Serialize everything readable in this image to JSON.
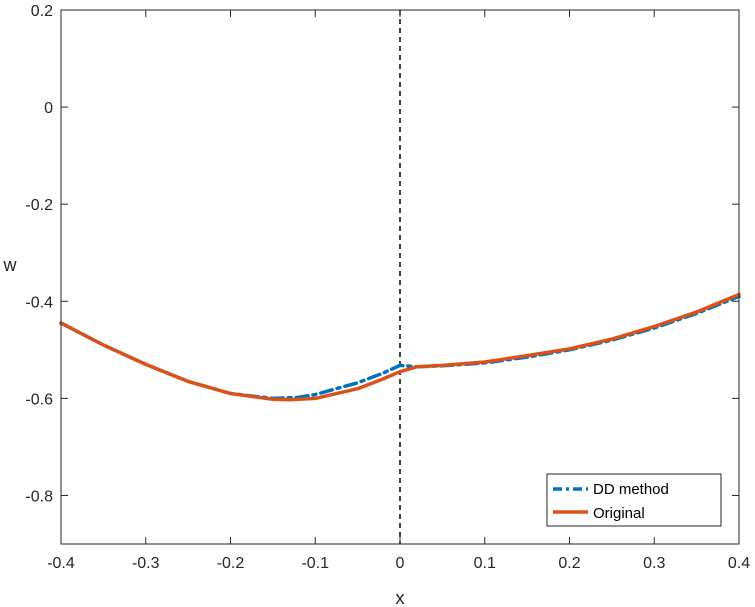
{
  "chart_data": {
    "type": "line",
    "title": "",
    "xlabel": "x",
    "ylabel": "w",
    "xlim": [
      -0.4,
      0.4
    ],
    "ylim": [
      -0.9,
      0.2
    ],
    "xticks": [
      -0.4,
      -0.3,
      -0.2,
      -0.1,
      0,
      0.1,
      0.2,
      0.3,
      0.4
    ],
    "xtick_labels": [
      "-0.4",
      "-0.3",
      "-0.2",
      "-0.1",
      "0",
      "0.1",
      "0.2",
      "0.3",
      "0.4"
    ],
    "yticks": [
      -0.8,
      -0.6,
      -0.4,
      -0.2,
      0,
      0.2
    ],
    "ytick_labels": [
      "-0.8",
      "-0.6",
      "-0.4",
      "-0.2",
      "0",
      "0.2"
    ],
    "grid": false,
    "legend_position": "bottom-right",
    "vertical_line": {
      "x": 0,
      "style": "dashed",
      "color": "#000000"
    },
    "series": [
      {
        "name": "DD method",
        "color": "#0072BD",
        "style": "dashdot",
        "x": [
          -0.4,
          -0.35,
          -0.3,
          -0.25,
          -0.2,
          -0.15,
          -0.12,
          -0.1,
          -0.05,
          -0.02,
          0,
          0.02,
          0.05,
          0.1,
          0.15,
          0.2,
          0.25,
          0.3,
          0.35,
          0.4
        ],
        "y": [
          -0.445,
          -0.49,
          -0.53,
          -0.565,
          -0.59,
          -0.6,
          -0.598,
          -0.592,
          -0.568,
          -0.548,
          -0.532,
          -0.535,
          -0.533,
          -0.527,
          -0.515,
          -0.5,
          -0.48,
          -0.455,
          -0.425,
          -0.39
        ]
      },
      {
        "name": "Original",
        "color": "#D95319",
        "style": "solid",
        "x": [
          -0.4,
          -0.35,
          -0.3,
          -0.25,
          -0.2,
          -0.15,
          -0.13,
          -0.1,
          -0.05,
          -0.02,
          0,
          0.02,
          0.05,
          0.1,
          0.15,
          0.2,
          0.25,
          0.3,
          0.35,
          0.4
        ],
        "y": [
          -0.445,
          -0.49,
          -0.53,
          -0.565,
          -0.59,
          -0.602,
          -0.603,
          -0.6,
          -0.58,
          -0.56,
          -0.545,
          -0.535,
          -0.532,
          -0.525,
          -0.512,
          -0.498,
          -0.478,
          -0.452,
          -0.422,
          -0.386
        ]
      }
    ]
  }
}
